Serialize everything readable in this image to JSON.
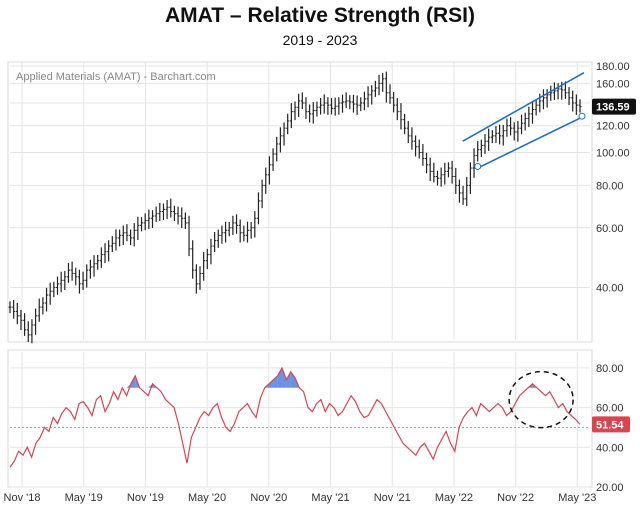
{
  "title": "AMAT – Relative Strength (RSI)",
  "subtitle": "2019 - 2023",
  "watermark": "Applied Materials (AMAT) - Barchart.com",
  "colors": {
    "bar": "#222222",
    "channel": "#1f6fc8",
    "rsi_line": "#d9444f",
    "overbought_fill": "#3a6fd6",
    "last_price_bg": "#111111",
    "last_rsi_bg": "#d9444f",
    "grid": "#e4e4e4"
  },
  "chart_data": [
    {
      "type": "ohlc",
      "title": "",
      "y_ticks": [
        "180.00",
        "160.00",
        "140.00",
        "120.00",
        "100.00",
        "80.00",
        "60.00",
        "40.00"
      ],
      "ylim": [
        28,
        180
      ],
      "scale": "log",
      "last_value": "136.59",
      "x_ticks": [
        "Nov '18",
        "May '19",
        "Nov '19",
        "May '20",
        "Nov '20",
        "May '21",
        "Nov '21",
        "May '22",
        "Nov '22",
        "May '23"
      ],
      "approx_weekly_close": [
        35,
        34,
        33,
        32,
        30,
        29,
        31,
        33,
        35,
        36,
        38,
        39,
        40,
        41,
        42,
        43,
        45,
        44,
        43,
        41,
        42,
        45,
        46,
        47,
        48,
        50,
        51,
        53,
        54,
        56,
        57,
        58,
        57,
        56,
        59,
        61,
        62,
        63,
        64,
        65,
        66,
        67,
        68,
        69,
        67,
        66,
        65,
        64,
        62,
        52,
        45,
        41,
        44,
        48,
        50,
        53,
        55,
        57,
        58,
        59,
        60,
        62,
        61,
        58,
        57,
        59,
        60,
        64,
        72,
        80,
        86,
        92,
        99,
        106,
        112,
        118,
        124,
        132,
        136,
        142,
        140,
        132,
        130,
        133,
        136,
        138,
        140,
        138,
        135,
        137,
        140,
        141,
        142,
        141,
        139,
        138,
        140,
        144,
        148,
        152,
        155,
        160,
        165,
        150,
        145,
        138,
        132,
        125,
        118,
        112,
        108,
        104,
        100,
        96,
        92,
        88,
        85,
        84,
        86,
        88,
        90,
        85,
        80,
        76,
        73,
        80,
        90,
        98,
        102,
        105,
        108,
        111,
        112,
        114,
        112,
        116,
        120,
        118,
        115,
        118,
        122,
        126,
        130,
        134,
        138,
        142,
        145,
        148,
        150,
        152,
        154,
        153,
        150,
        145,
        140,
        138,
        136.59
      ],
      "annotations": [
        "ascending price channel (2 trendlines)",
        "small circles at touch points"
      ]
    },
    {
      "type": "line",
      "title": "",
      "series": [
        {
          "name": "RSI"
        }
      ],
      "y_ticks": [
        "80.00",
        "60.00",
        "40.00",
        "20.00"
      ],
      "ylim": [
        20,
        88
      ],
      "reference_line": 50,
      "last_value": "51.54",
      "x_ticks": [
        "Nov '18",
        "May '19",
        "Nov '19",
        "May '20",
        "Nov '20",
        "May '21",
        "Nov '21",
        "May '22",
        "Nov '22",
        "May '23"
      ],
      "approx_weekly_values": [
        30,
        33,
        38,
        36,
        40,
        35,
        42,
        45,
        50,
        48,
        55,
        52,
        57,
        60,
        58,
        54,
        62,
        63,
        60,
        56,
        64,
        66,
        58,
        62,
        68,
        64,
        70,
        66,
        72,
        76,
        70,
        68,
        66,
        72,
        70,
        68,
        64,
        62,
        60,
        52,
        42,
        32,
        45,
        50,
        55,
        58,
        56,
        60,
        62,
        55,
        50,
        48,
        52,
        58,
        60,
        62,
        58,
        55,
        65,
        70,
        72,
        74,
        76,
        80,
        74,
        78,
        75,
        70,
        68,
        60,
        58,
        62,
        64,
        58,
        62,
        60,
        56,
        58,
        62,
        66,
        63,
        58,
        55,
        56,
        60,
        64,
        62,
        58,
        54,
        50,
        46,
        42,
        40,
        38,
        36,
        40,
        42,
        38,
        34,
        40,
        44,
        48,
        42,
        38,
        50,
        55,
        58,
        60,
        56,
        62,
        60,
        58,
        60,
        62,
        60,
        56,
        58,
        62,
        66,
        68,
        70,
        72,
        70,
        68,
        66,
        68,
        64,
        60,
        62,
        58,
        56,
        54,
        51.54
      ],
      "annotations": [
        "dashed ellipse around recent RSI peak"
      ]
    }
  ]
}
